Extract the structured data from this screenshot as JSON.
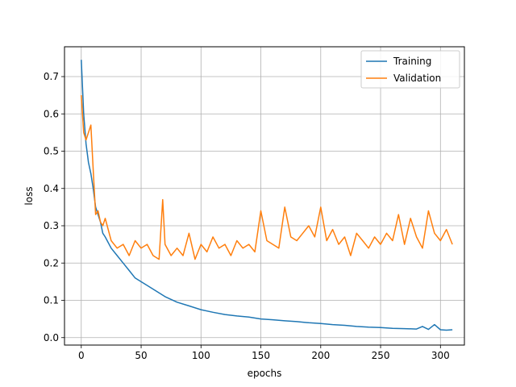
{
  "chart_data": {
    "type": "line",
    "title": "",
    "xlabel": "epochs",
    "ylabel": "loss",
    "xlim": [
      -14,
      320
    ],
    "ylim": [
      -0.02,
      0.78
    ],
    "xticks": [
      0,
      50,
      100,
      150,
      200,
      250,
      300
    ],
    "yticks": [
      0.0,
      0.1,
      0.2,
      0.3,
      0.4,
      0.5,
      0.6,
      0.7
    ],
    "ytick_labels": [
      "0.0",
      "0.1",
      "0.2",
      "0.3",
      "0.4",
      "0.5",
      "0.6",
      "0.7"
    ],
    "grid": true,
    "legend_position": "upper right",
    "series": [
      {
        "name": "Training",
        "color": "#1f77b4",
        "x": [
          0,
          2,
          4,
          6,
          8,
          10,
          12,
          14,
          16,
          18,
          20,
          25,
          30,
          35,
          40,
          45,
          50,
          55,
          60,
          65,
          70,
          80,
          90,
          100,
          110,
          120,
          130,
          140,
          150,
          160,
          170,
          180,
          190,
          200,
          210,
          220,
          230,
          240,
          250,
          260,
          270,
          280,
          285,
          290,
          295,
          300,
          305,
          310
        ],
        "values": [
          0.745,
          0.6,
          0.52,
          0.47,
          0.44,
          0.4,
          0.35,
          0.33,
          0.31,
          0.28,
          0.27,
          0.24,
          0.22,
          0.2,
          0.18,
          0.16,
          0.15,
          0.14,
          0.13,
          0.12,
          0.11,
          0.095,
          0.085,
          0.075,
          0.068,
          0.062,
          0.058,
          0.055,
          0.05,
          0.048,
          0.045,
          0.043,
          0.04,
          0.038,
          0.035,
          0.033,
          0.03,
          0.028,
          0.027,
          0.025,
          0.024,
          0.023,
          0.03,
          0.022,
          0.035,
          0.021,
          0.02,
          0.021
        ]
      },
      {
        "name": "Validation",
        "color": "#ff7f0e",
        "x": [
          0,
          2,
          4,
          6,
          8,
          10,
          12,
          14,
          16,
          18,
          20,
          25,
          30,
          35,
          40,
          45,
          50,
          55,
          60,
          65,
          68,
          70,
          75,
          80,
          85,
          90,
          95,
          100,
          105,
          110,
          115,
          120,
          125,
          130,
          135,
          140,
          145,
          150,
          155,
          160,
          165,
          170,
          175,
          180,
          185,
          190,
          195,
          200,
          205,
          210,
          215,
          220,
          225,
          230,
          235,
          240,
          245,
          250,
          255,
          260,
          265,
          270,
          275,
          280,
          285,
          290,
          295,
          300,
          305,
          310
        ],
        "values": [
          0.65,
          0.55,
          0.53,
          0.55,
          0.57,
          0.45,
          0.33,
          0.34,
          0.31,
          0.3,
          0.32,
          0.26,
          0.24,
          0.25,
          0.22,
          0.26,
          0.24,
          0.25,
          0.22,
          0.21,
          0.37,
          0.25,
          0.22,
          0.24,
          0.22,
          0.28,
          0.21,
          0.25,
          0.23,
          0.27,
          0.24,
          0.25,
          0.22,
          0.26,
          0.24,
          0.25,
          0.23,
          0.34,
          0.26,
          0.25,
          0.24,
          0.35,
          0.27,
          0.26,
          0.28,
          0.3,
          0.27,
          0.35,
          0.26,
          0.29,
          0.25,
          0.27,
          0.22,
          0.28,
          0.26,
          0.24,
          0.27,
          0.25,
          0.28,
          0.26,
          0.33,
          0.25,
          0.32,
          0.27,
          0.24,
          0.34,
          0.28,
          0.26,
          0.29,
          0.25
        ]
      }
    ]
  }
}
